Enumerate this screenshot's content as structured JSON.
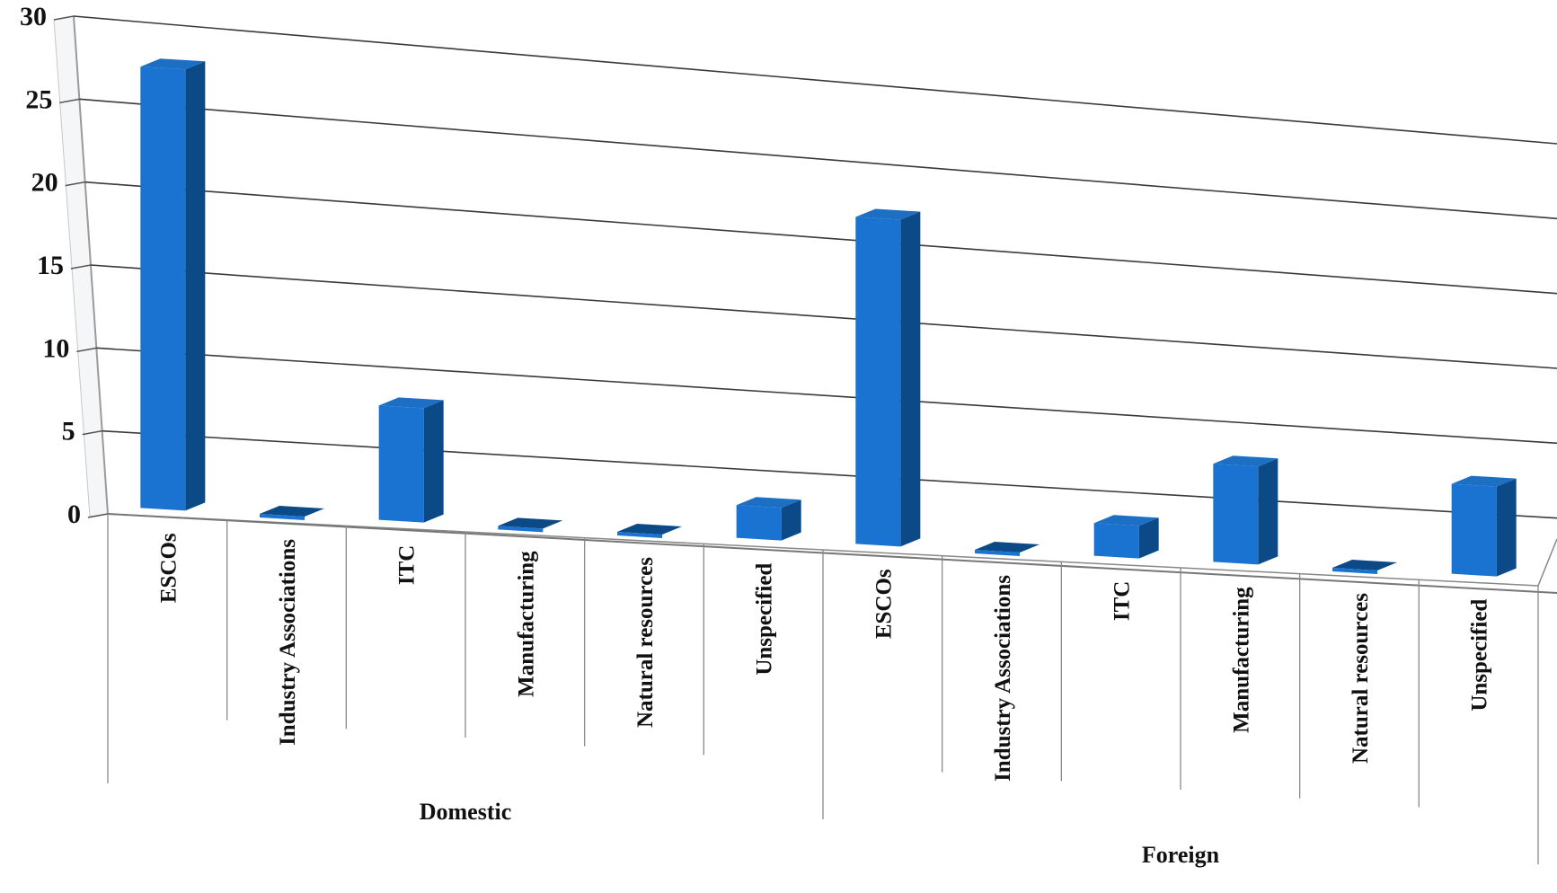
{
  "chart_data": {
    "type": "bar",
    "style": "3d-column",
    "title": "",
    "xlabel": "",
    "ylabel": "",
    "ylim": [
      0,
      30
    ],
    "yticks": [
      0,
      5,
      10,
      15,
      20,
      25,
      30
    ],
    "grid": true,
    "legend": "none",
    "bar_color": "#1a73d1",
    "bar_side_color": "#0b4a86",
    "bar_top_color": "#1d6fc4",
    "groups": [
      {
        "name": "Domestic",
        "categories": [
          "ESCOs",
          "Industry Associations",
          "ITC",
          "Manufacturing",
          "Natural resources",
          "Unspecified"
        ]
      },
      {
        "name": "Foreign",
        "categories": [
          "ESCOs",
          "Industry Associations",
          "ITC",
          "Manufacturing",
          "Natural resources",
          "Unspecified"
        ]
      }
    ],
    "categories": [
      "ESCOs",
      "Industry Associations",
      "ITC",
      "Manufacturing",
      "Natural resources",
      "Unspecified",
      "ESCOs",
      "Industry Associations",
      "ITC",
      "Manufacturing",
      "Natural resources",
      "Unspecified"
    ],
    "values": [
      27,
      0,
      7,
      0,
      0,
      2,
      20,
      0,
      2,
      6,
      0,
      5.5
    ]
  }
}
